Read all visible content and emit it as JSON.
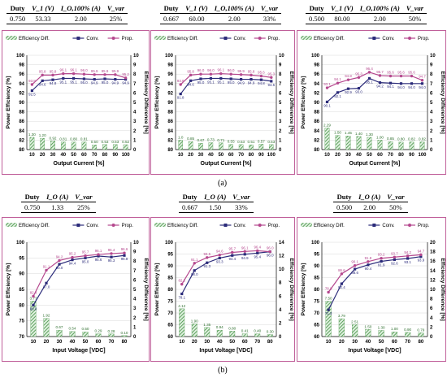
{
  "tables": [
    {
      "headers": [
        "Duty",
        "V_1 (V)",
        "I_O,100% (A)",
        "V_var"
      ],
      "row": [
        "0.750",
        "53.33",
        "2.00",
        "25%"
      ]
    },
    {
      "headers": [
        "Duty",
        "V_1 (V)",
        "I_O,100% (A)",
        "V_var"
      ],
      "row": [
        "0.667",
        "60.00",
        "2.00",
        "33%"
      ]
    },
    {
      "headers": [
        "Duty",
        "V_1 (V)",
        "I_O,100% (A)",
        "V_var"
      ],
      "row": [
        "0.500",
        "80.00",
        "2.00",
        "50%"
      ]
    },
    {
      "headers": [
        "Duty",
        "I_O (A)",
        "V_var"
      ],
      "row": [
        "0.750",
        "1.33",
        "25%"
      ]
    },
    {
      "headers": [
        "Duty",
        "I_O (A)",
        "V_var"
      ],
      "row": [
        "0.667",
        "1.50",
        "33%"
      ]
    },
    {
      "headers": [
        "Duty",
        "I_O (A)",
        "V_var"
      ],
      "row": [
        "0.500",
        "2.00",
        "50%"
      ]
    }
  ],
  "captions": [
    "(a)",
    "(b)"
  ],
  "colors": {
    "conv": "#2b2b7a",
    "prop": "#b5488e",
    "diff": "#3f8f3f",
    "border": "#c0609a"
  },
  "chart_data": [
    {
      "type": "bar+line",
      "legend": [
        "Efficiency Diff.",
        "Conv.",
        "Prop."
      ],
      "xlabel": "Output Current [%]",
      "ylabel": "Power Efficiency [%]",
      "y2label": "Efficiency Difference [%]",
      "x": [
        10,
        20,
        30,
        40,
        50,
        60,
        70,
        80,
        90,
        100
      ],
      "ylim": [
        80,
        100
      ],
      "yticks": [
        80,
        82,
        84,
        86,
        88,
        90,
        92,
        94,
        96,
        98,
        100
      ],
      "y2lim": [
        0,
        10
      ],
      "y2ticks": [
        0,
        1,
        2,
        3,
        4,
        5,
        6,
        7,
        8,
        9,
        10
      ],
      "series": [
        {
          "name": "Conv.",
          "values": [
            92.5,
            94.6,
            94.8,
            95.1,
            95.1,
            95.0,
            94.9,
            95.0,
            94.9,
            94.9
          ]
        },
        {
          "name": "Prop.",
          "values": [
            93.8,
            95.8,
            95.8,
            96.1,
            96.1,
            96.0,
            95.9,
            95.9,
            95.9,
            95.2
          ]
        },
        {
          "name": "Efficiency Diff.",
          "values": [
            1.3,
            1.2,
            0.92,
            0.81,
            0.8,
            0.81,
            0.5,
            0.53,
            0.53,
            0.52
          ]
        }
      ],
      "labels": {
        "Prop.": [
          "93.8",
          "95.8",
          "95.8",
          "96.1",
          "96.1",
          "96.0",
          "95.9",
          "95.9",
          "95.9",
          "95.2"
        ],
        "Conv.": [
          "92.5",
          "94.6",
          "94.8",
          "95.1",
          "95.1",
          "95.0",
          "94.9",
          "95.0",
          "94.9",
          "94.9"
        ],
        "Efficiency Diff.": [
          "1.30",
          "1.20",
          "0.92",
          "0.81",
          "0.80",
          "0.81",
          "0.50",
          "0.53",
          "0.53",
          "0.52"
        ]
      }
    },
    {
      "type": "bar+line",
      "legend": [
        "Efficiency Diff.",
        "Conv.",
        "Prop."
      ],
      "xlabel": "Output Current [%]",
      "ylabel": "Power Efficiency [%]",
      "y2label": "Efficiency Difference [%]",
      "x": [
        10,
        20,
        30,
        40,
        50,
        60,
        70,
        80,
        90,
        100
      ],
      "ylim": [
        80,
        100
      ],
      "yticks": [
        80,
        82,
        84,
        86,
        88,
        90,
        92,
        94,
        96,
        98,
        100
      ],
      "y2lim": [
        0,
        10
      ],
      "y2ticks": [
        0,
        1,
        2,
        3,
        4,
        5,
        6,
        7,
        8,
        9,
        10
      ],
      "series": [
        {
          "name": "Conv.",
          "values": [
            91.8,
            94.6,
            95.0,
            95.1,
            95.1,
            95.0,
            94.9,
            94.9,
            94.8,
            94.5
          ]
        },
        {
          "name": "Prop.",
          "values": [
            93.8,
            95.8,
            96.0,
            96.0,
            96.1,
            96.0,
            95.9,
            95.8,
            95.6,
            95.3
          ]
        },
        {
          "name": "Efficiency Diff.",
          "values": [
            1.0,
            0.85,
            0.67,
            0.73,
            0.71,
            0.55,
            0.53,
            0.51,
            0.57,
            0.53
          ]
        }
      ],
      "labels": {
        "Prop.": [
          "93.8",
          "95.8",
          "96.0",
          "96.0",
          "96.1",
          "96.0",
          "95.9",
          "95.8",
          "95.6",
          "95.3"
        ],
        "Conv.": [
          "91.8",
          "94.6",
          "95.0",
          "95.1",
          "95.1",
          "95.0",
          "94.9",
          "94.9",
          "94.8",
          "94.5"
        ],
        "Efficiency Diff.": [
          "1.0",
          "0.85",
          "0.67",
          "0.73",
          "0.71",
          "0.55",
          "0.53",
          "0.51",
          "0.57",
          "0.53"
        ]
      }
    },
    {
      "type": "bar+line",
      "legend": [
        "Efficiency Diff.",
        "Conv.",
        "Prop."
      ],
      "xlabel": "Output Current [%]",
      "ylabel": "Power Efficiency [%]",
      "y2label": "Efficiency Difference [%]",
      "x": [
        10,
        20,
        30,
        40,
        50,
        60,
        70,
        80,
        90,
        100
      ],
      "ylim": [
        80,
        100
      ],
      "yticks": [
        80,
        82,
        84,
        86,
        88,
        90,
        92,
        94,
        96,
        98,
        100
      ],
      "y2lim": [
        0,
        10
      ],
      "y2ticks": [
        0,
        1,
        2,
        3,
        4,
        5,
        6,
        7,
        8,
        9,
        10
      ],
      "series": [
        {
          "name": "Conv.",
          "values": [
            90.1,
            92.1,
            92.9,
            93.0,
            95.1,
            94.2,
            94.1,
            94.0,
            94.0,
            94.0
          ]
        },
        {
          "name": "Prop.",
          "values": [
            93.1,
            94.1,
            94.8,
            95.3,
            96.4,
            95.7,
            95.6,
            95.6,
            95.6,
            94.7
          ]
        },
        {
          "name": "Efficiency Diff.",
          "values": [
            2.29,
            1.5,
            1.45,
            1.4,
            1.3,
            1.0,
            0.85,
            0.8,
            0.82,
            0.82
          ]
        }
      ],
      "labels": {
        "Prop.": [
          "93.1",
          "94.1",
          "94.8",
          "95.3",
          "96.4",
          "95.7",
          "95.6",
          "95.6",
          "95.6",
          "94.7"
        ],
        "Conv.": [
          "90.1",
          "92.1",
          "92.9",
          "93.0",
          "95.1",
          "94.2",
          "94.1",
          "94.0",
          "94.0",
          "94.0"
        ],
        "Efficiency Diff.": [
          "2.29",
          "1.50",
          "1.45",
          "1.40",
          "1.30",
          "1.00",
          "0.85",
          "0.80",
          "0.82",
          "0.82"
        ]
      }
    },
    {
      "type": "bar+line",
      "legend": [
        "Efficiency Diff.",
        "Conv.",
        "Prop."
      ],
      "xlabel": "Input Voltage [VDC]",
      "ylabel": "Power Efficiency [%]",
      "y2label": "Efficiency Difference [%]",
      "x": [
        10,
        20,
        30,
        40,
        50,
        60,
        70,
        80
      ],
      "ylim": [
        70,
        100
      ],
      "yticks": [
        70,
        75,
        80,
        85,
        90,
        95,
        100
      ],
      "y2lim": [
        0,
        10
      ],
      "y2ticks": [
        0,
        1,
        2,
        3,
        4,
        5,
        6,
        7,
        8,
        9,
        10
      ],
      "series": [
        {
          "name": "Conv.",
          "values": [
            80.0,
            87.0,
            93.0,
            94.4,
            95.0,
            95.6,
            95.3,
            95.8
          ]
        },
        {
          "name": "Prop.",
          "values": [
            82.8,
            91.1,
            94.2,
            95.2,
            95.7,
            96.1,
            96.4,
            96.6
          ]
        },
        {
          "name": "Efficiency Diff.",
          "values": [
            3.77,
            1.92,
            0.67,
            0.54,
            0.5,
            0.29,
            0.28,
            0.1
          ]
        }
      ],
      "labels": {
        "Prop.": [
          "82.8",
          "91.1",
          "94.2",
          "95.2",
          "95.7",
          "96.1",
          "96.4",
          "96.6"
        ],
        "Conv.": [
          "80.0",
          "87.0",
          "93.0",
          "94.4",
          "95.0",
          "95.6",
          "95.3",
          "95.8"
        ],
        "Efficiency Diff.": [
          "3.77",
          "1.92",
          "0.67",
          "0.54",
          "0.50",
          "0.29",
          "0.28",
          "0.10"
        ]
      }
    },
    {
      "type": "bar+line",
      "legend": [
        "Efficiency Diff.",
        "Conv.",
        "Prop."
      ],
      "xlabel": "Input Voltage [VDC]",
      "ylabel": "Power Efficiency [%]",
      "y2label": "Efficiency Difference [%]",
      "x": [
        10,
        20,
        30,
        40,
        50,
        60,
        70,
        80
      ],
      "ylim": [
        60,
        100
      ],
      "yticks": [
        60,
        65,
        70,
        75,
        80,
        85,
        90,
        95,
        100
      ],
      "y2lim": [
        0,
        14
      ],
      "y2ticks": [
        0,
        2,
        4,
        6,
        8,
        10,
        12,
        14
      ],
      "series": [
        {
          "name": "Conv.",
          "values": [
            78.1,
            88.0,
            91.3,
            93.3,
            94.4,
            94.9,
            95.4,
            96.0
          ]
        },
        {
          "name": "Prop.",
          "values": [
            82.2,
            91.1,
            93.5,
            94.6,
            95.7,
            96.1,
            96.4,
            96.0
          ]
        },
        {
          "name": "Efficiency Diff.",
          "values": [
            4.12,
            1.9,
            1.35,
            0.94,
            0.8,
            0.41,
            0.4,
            0.3
          ]
        }
      ],
      "labels": {
        "Prop.": [
          "82.2",
          "91.1",
          "93.5",
          "94.6",
          "95.7",
          "96.1",
          "96.4",
          "96.0"
        ],
        "Conv.": [
          "78.1",
          "88.0",
          "91.3",
          "93.3",
          "94.4",
          "94.9",
          "95.4",
          "96.0"
        ],
        "Efficiency Diff.": [
          "4.12",
          "1.90",
          "1.35",
          "0.94",
          "0.80",
          "0.41",
          "0.40",
          "0.30"
        ]
      }
    },
    {
      "type": "bar+line",
      "legend": [
        "Efficiency Diff.",
        "Conv.",
        "Prop."
      ],
      "xlabel": "Input Voltage [VDC]",
      "ylabel": "Power Efficiency [%]",
      "y2label": "Efficiency Difference [%]",
      "x": [
        10,
        20,
        30,
        40,
        50,
        60,
        70,
        80
      ],
      "ylim": [
        60,
        100
      ],
      "yticks": [
        60,
        65,
        70,
        75,
        80,
        85,
        90,
        95,
        100
      ],
      "y2lim": [
        0,
        20
      ],
      "y2ticks": [
        0,
        2,
        4,
        6,
        8,
        10,
        12,
        14,
        16,
        18,
        20
      ],
      "series": [
        {
          "name": "Conv.",
          "values": [
            71.3,
            82.4,
            88.6,
            90.4,
            91.9,
            92.6,
            93.1,
            93.9
          ]
        },
        {
          "name": "Prop.",
          "values": [
            78.8,
            86.6,
            90.1,
            91.8,
            93.2,
            93.7,
            94.2,
            94.7
          ]
        },
        {
          "name": "Efficiency Diff.",
          "values": [
            7.5,
            3.79,
            2.51,
            1.5,
            1.3,
            1.0,
            0.9,
            0.79
          ]
        }
      ],
      "labels": {
        "Prop.": [
          "78.8",
          "86.6",
          "90.1",
          "91.8",
          "93.2",
          "93.7",
          "94.2",
          "94.7"
        ],
        "Conv.": [
          "71.3",
          "82.4",
          "88.6",
          "90.4",
          "91.9",
          "92.6",
          "93.1",
          "93.9"
        ],
        "Efficiency Diff.": [
          "7.50",
          "3.79",
          "2.51",
          "1.50",
          "1.30",
          "1.00",
          "0.90",
          "0.79"
        ]
      }
    }
  ]
}
